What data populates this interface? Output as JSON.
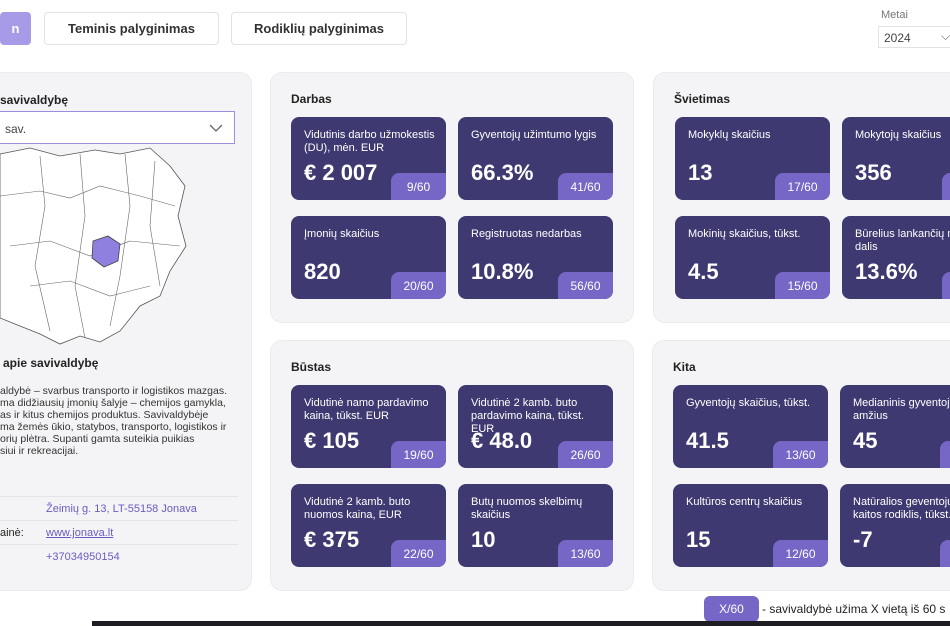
{
  "nav": {
    "tabs": [
      "n",
      "Teminis palyginimas",
      "Rodiklių palyginimas"
    ]
  },
  "year": {
    "label": "Metai",
    "value": "2024"
  },
  "sidebar": {
    "select_title": "savivaldybę",
    "select_value": "sav.",
    "about_title": "apie savivaldybę",
    "description": [
      "aldybė – svarbus transporto ir logistikos mazgas.",
      "ma didžiausių įmonių šalyje – chemijos gamykla,",
      "as ir kitus chemijos produktus. Savivaldybėje",
      "ma žemės ūkio, statybos, transporto, logistikos ir",
      "orių plėtra. Supanti gamta suteikia puikias",
      "siui ir rekreacijai."
    ],
    "contacts": [
      {
        "value": "Žeimių g. 13, LT-55158 Jonava"
      },
      {
        "label": "ainė:",
        "value": "www.jonava.lt"
      },
      {
        "value": "+37034950154"
      }
    ]
  },
  "sections": [
    {
      "title": "Darbas",
      "cards": [
        {
          "label": "Vidutinis darbo užmokestis (DU), mėn. EUR",
          "value": "€ 2 007",
          "rank": "9/60"
        },
        {
          "label": "Gyventojų užimtumo lygis",
          "value": "66.3%",
          "rank": "41/60"
        },
        {
          "label": "Įmonių skaičius",
          "value": "820",
          "rank": "20/60"
        },
        {
          "label": "Registruotas nedarbas",
          "value": "10.8%",
          "rank": "56/60"
        }
      ]
    },
    {
      "title": "Švietimas",
      "cards": [
        {
          "label": "Mokyklų skaičius",
          "value": "13",
          "rank": "17/60"
        },
        {
          "label": "Mokytojų skaičius",
          "value": "356"
        },
        {
          "label": "Mokinių skaičius, tūkst.",
          "value": "4.5",
          "rank": "15/60"
        },
        {
          "label": "Būrelius lankančių mokinių dalis",
          "value": "13.6%"
        }
      ]
    },
    {
      "title": "Būstas",
      "cards": [
        {
          "label": "Vidutinė namo pardavimo kaina, tūkst. EUR",
          "value": "€ 105",
          "rank": "19/60"
        },
        {
          "label": "Vidutinė 2 kamb. buto pardavimo kaina, tūkst. EUR",
          "value": "€ 48.0",
          "rank": "26/60"
        },
        {
          "label": "Vidutinė 2 kamb. buto nuomos kaina, EUR",
          "value": "€ 375",
          "rank": "22/60"
        },
        {
          "label": "Butų nuomos skelbimų skaičius",
          "value": "10",
          "rank": "13/60"
        }
      ]
    },
    {
      "title": "Kita",
      "cards": [
        {
          "label": "Gyventojų skaičius, tūkst.",
          "value": "41.5",
          "rank": "13/60"
        },
        {
          "label": "Medianinis gyventojų amžius",
          "value": "45"
        },
        {
          "label": "Kultūros centrų skaičius",
          "value": "15",
          "rank": "12/60"
        },
        {
          "label": "Natūralios geventojų kaitos rodiklis, tūkst.",
          "value": "-7"
        }
      ]
    }
  ],
  "legend": {
    "badge": "X/60",
    "text": "- savivaldybė užima X vietą iš 60 s"
  }
}
